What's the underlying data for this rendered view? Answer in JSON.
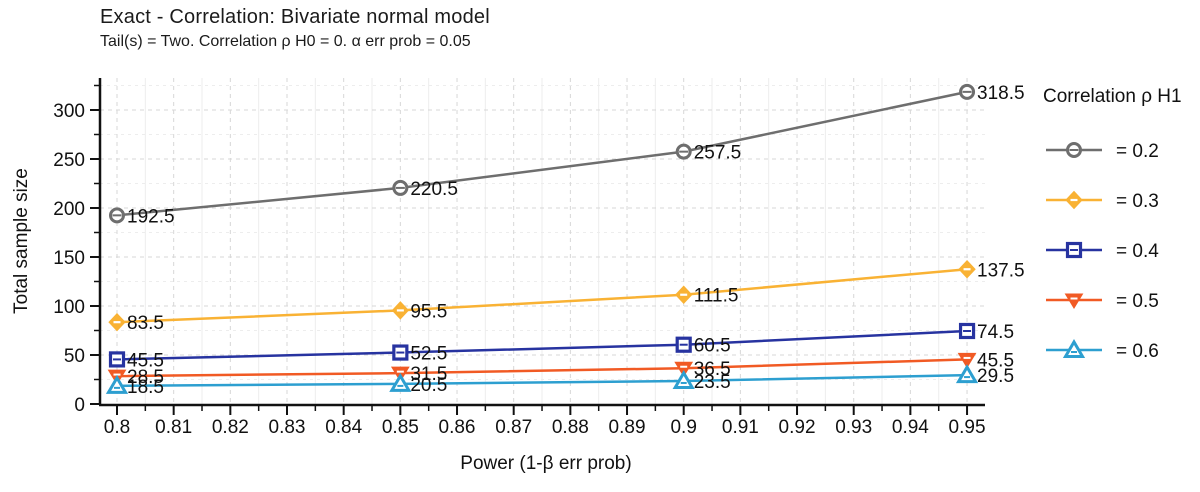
{
  "chart_data": {
    "type": "line",
    "title": "Exact - Correlation: Bivariate normal model",
    "subtitle": "Tail(s) = Two. Correlation ρ H0 = 0. α err prob = 0.05",
    "xlabel": "Power (1-β err prob)",
    "ylabel": "Total sample size",
    "xlim": [
      0.797,
      0.953
    ],
    "ylim": [
      0,
      333
    ],
    "grid": "major dashed light-gray, minor faint",
    "x": [
      0.8,
      0.85,
      0.9,
      0.95
    ],
    "x_ticks": [
      {
        "v": 0.8,
        "label": "0.8"
      },
      {
        "v": 0.81,
        "label": "0.81"
      },
      {
        "v": 0.82,
        "label": "0.82"
      },
      {
        "v": 0.83,
        "label": "0.83"
      },
      {
        "v": 0.84,
        "label": "0.84"
      },
      {
        "v": 0.85,
        "label": "0.85"
      },
      {
        "v": 0.86,
        "label": "0.86"
      },
      {
        "v": 0.87,
        "label": "0.87"
      },
      {
        "v": 0.88,
        "label": "0.88"
      },
      {
        "v": 0.89,
        "label": "0.89"
      },
      {
        "v": 0.9,
        "label": "0.9"
      },
      {
        "v": 0.91,
        "label": "0.91"
      },
      {
        "v": 0.92,
        "label": "0.92"
      },
      {
        "v": 0.93,
        "label": "0.93"
      },
      {
        "v": 0.94,
        "label": "0.94"
      },
      {
        "v": 0.95,
        "label": "0.95"
      }
    ],
    "y_ticks": [
      {
        "v": 0,
        "label": "0"
      },
      {
        "v": 50,
        "label": "50"
      },
      {
        "v": 100,
        "label": "100"
      },
      {
        "v": 150,
        "label": "150"
      },
      {
        "v": 200,
        "label": "200"
      },
      {
        "v": 250,
        "label": "250"
      },
      {
        "v": 300,
        "label": "300"
      }
    ],
    "y_minor_ticks": [
      25,
      75,
      125,
      175,
      225,
      275,
      325
    ],
    "legend": {
      "title": "Correlation ρ H1",
      "position": "right"
    },
    "series": [
      {
        "name": "rho-0.2",
        "legend_label": "= 0.2",
        "color": "#6e6e6e",
        "marker": "circle",
        "values": [
          192.5,
          220.5,
          257.5,
          318.5
        ],
        "labels": [
          "192.5",
          "220.5",
          "257.5",
          "318.5"
        ]
      },
      {
        "name": "rho-0.3",
        "legend_label": "= 0.3",
        "color": "#f9b234",
        "marker": "diamond",
        "values": [
          83.5,
          95.5,
          111.5,
          137.5
        ],
        "labels": [
          "83.5",
          "95.5",
          "111.5",
          "137.5"
        ]
      },
      {
        "name": "rho-0.4",
        "legend_label": "= 0.4",
        "color": "#2733a0",
        "marker": "square",
        "values": [
          45.5,
          52.5,
          60.5,
          74.5
        ],
        "labels": [
          "45.5",
          "52.5",
          "60.5",
          "74.5"
        ]
      },
      {
        "name": "rho-0.5",
        "legend_label": "= 0.5",
        "color": "#f15a24",
        "marker": "triangle-down",
        "values": [
          28.5,
          31.5,
          36.5,
          45.5
        ],
        "labels": [
          "28.5",
          "31.5",
          "36.5",
          "45.5"
        ]
      },
      {
        "name": "rho-0.6",
        "legend_label": "= 0.6",
        "color": "#2d9fd0",
        "marker": "triangle-up",
        "values": [
          18.5,
          20.5,
          23.5,
          29.5
        ],
        "labels": [
          "18.5",
          "20.5",
          "23.5",
          "29.5"
        ]
      }
    ],
    "colors": {
      "axis": "#111111",
      "grid_major": "#d7d7d7",
      "grid_minor": "#ededed",
      "text": "#111111"
    }
  }
}
